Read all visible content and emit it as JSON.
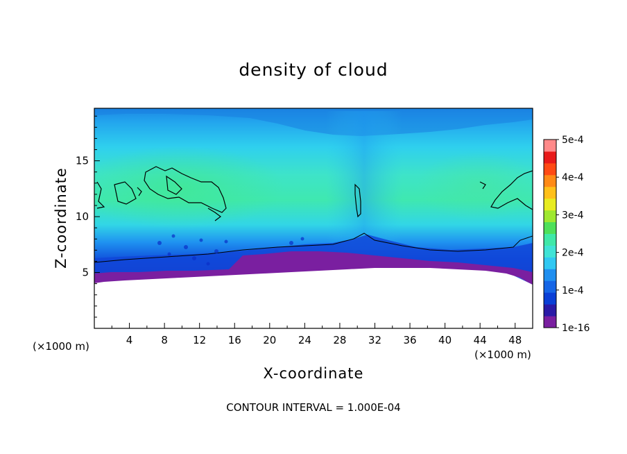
{
  "chart_data": {
    "type": "heatmap",
    "title": "density of cloud",
    "xlabel": "X-coordinate",
    "ylabel": "Z-coordinate",
    "x_unit_left": "(×1000 m)",
    "x_unit_right": "(×1000 m)",
    "xlim": [
      0,
      50
    ],
    "ylim": [
      0,
      19.7
    ],
    "x_ticks": [
      4,
      8,
      12,
      16,
      20,
      24,
      28,
      32,
      36,
      40,
      44,
      48
    ],
    "y_ticks": [
      5,
      10,
      15
    ],
    "colorbar": {
      "labels": [
        "5e-4",
        "4e-4",
        "3e-4",
        "2e-4",
        "1e-4",
        "1e-16"
      ],
      "values": [
        0.0005,
        0.0004,
        0.0003,
        0.0002,
        0.0001,
        1e-16
      ],
      "colors": [
        "#7a1fa0",
        "#2a1aa6",
        "#0a3fd6",
        "#1565e6",
        "#1f8ff0",
        "#30c8f2",
        "#3fe3d6",
        "#3fe8a8",
        "#4ee05a",
        "#9fe830",
        "#e8ec20",
        "#ffc01a",
        "#ff8a16",
        "#ff4a14",
        "#e81a1a",
        "#ff8a8a"
      ]
    },
    "contour_interval_text": "CONTOUR INTERVAL = 1.000E-04",
    "colors": {
      "cloud_top_dark": "#1e88e6",
      "cloud_mid": "#2fd2e6",
      "cloud_core": "#3de6b8",
      "cloud_base": "#1060e0",
      "cloud_bottom": "#7a1fa0"
    }
  }
}
